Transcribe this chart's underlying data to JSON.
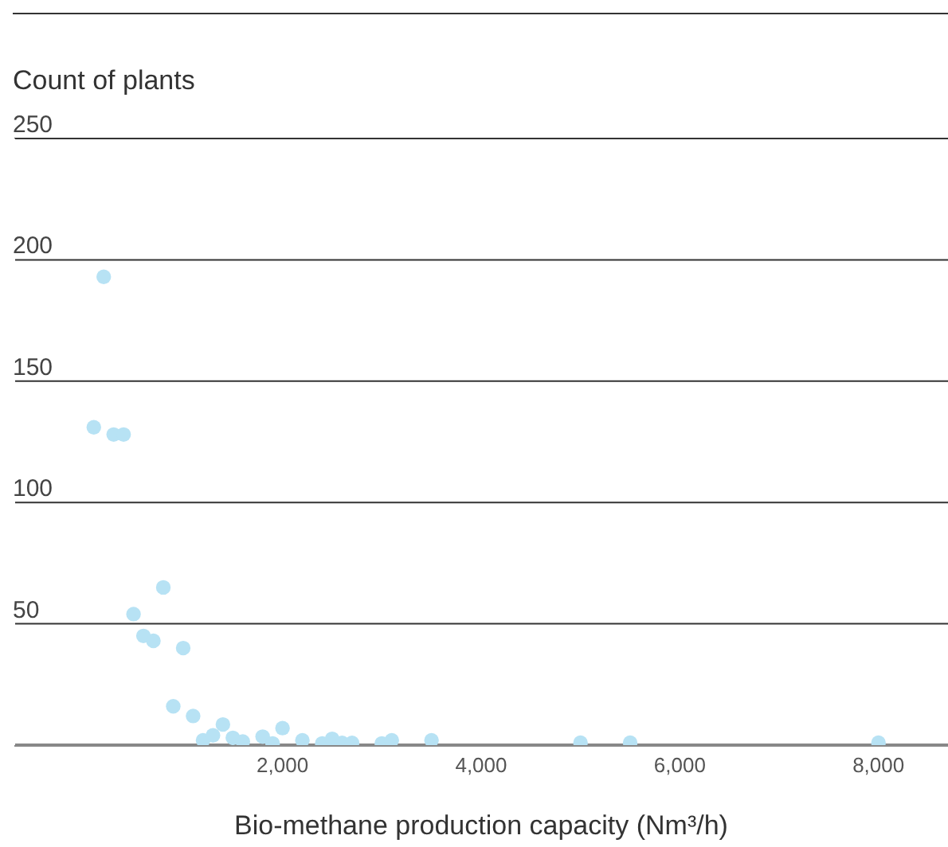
{
  "chart_data": {
    "type": "scatter",
    "ylabel": "Count of plants",
    "xlabel": "Bio-methane production capacity (Nm³/h)",
    "x": [
      100,
      200,
      300,
      400,
      500,
      600,
      700,
      800,
      900,
      1000,
      1100,
      1200,
      1300,
      1400,
      1500,
      1600,
      1800,
      1900,
      2000,
      2200,
      2400,
      2500,
      2600,
      2700,
      3000,
      3100,
      3500,
      5000,
      5500,
      8000
    ],
    "values": [
      131,
      193,
      128,
      128,
      54,
      45,
      43,
      65,
      16,
      40,
      12,
      2,
      4,
      8.5,
      3,
      1.5,
      3.5,
      0.7,
      7,
      2,
      0.7,
      2.6,
      0.9,
      0.9,
      0.7,
      2,
      2,
      1,
      1,
      1
    ],
    "color": "#b7e2f4",
    "xlim": [
      -700,
      8700
    ],
    "xticks": [
      {
        "value": 2000,
        "label": "2,000"
      },
      {
        "value": 4000,
        "label": "4,000"
      },
      {
        "value": 6000,
        "label": "6,000"
      },
      {
        "value": 8000,
        "label": "8,000"
      }
    ],
    "ylim": [
      0,
      250
    ],
    "yticks": [
      {
        "value": 0,
        "label": null
      },
      50,
      100,
      150,
      200,
      250
    ],
    "grid": "y",
    "marker": "circle",
    "legend": false
  }
}
